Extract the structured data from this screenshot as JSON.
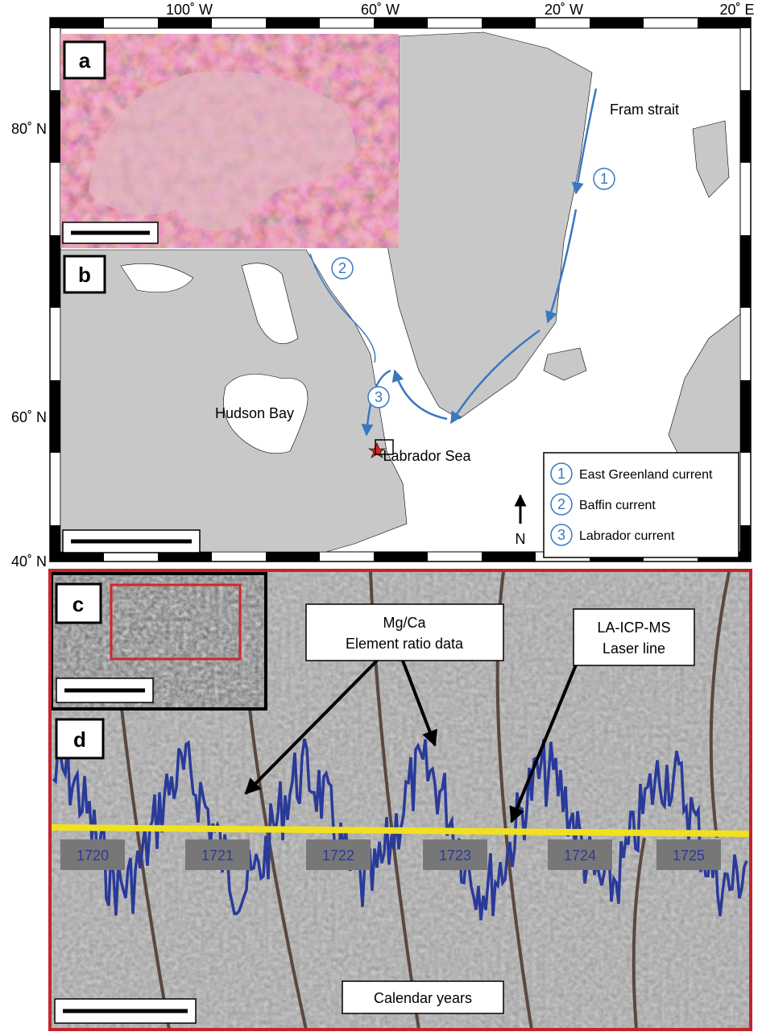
{
  "map": {
    "lon_labels": [
      "100˚ W",
      "60˚ W",
      "20˚ W",
      "20˚ E"
    ],
    "lat_labels": [
      "80˚ N",
      "60˚ N",
      "40˚ N"
    ],
    "places": [
      "Fram strait",
      "Hudson Bay",
      "Labrador Sea"
    ],
    "current_numbers": [
      "1",
      "2",
      "3"
    ],
    "legend": [
      {
        "number": "1",
        "label": "East Greenland current"
      },
      {
        "number": "2",
        "label": "Baffin current"
      },
      {
        "number": "3",
        "label": "Labrador current"
      }
    ],
    "north": "N"
  },
  "panels": {
    "a": "a",
    "b": "b",
    "c": "c",
    "d": "d"
  },
  "panel_d": {
    "callouts": [
      {
        "lines": [
          "Mg/Ca",
          "Element ratio data"
        ]
      },
      {
        "lines": [
          "LA-ICP-MS",
          "Laser line"
        ]
      }
    ],
    "years": [
      "1720",
      "1721",
      "1722",
      "1723",
      "1724",
      "1725"
    ],
    "axis_title": "Calendar years"
  }
}
